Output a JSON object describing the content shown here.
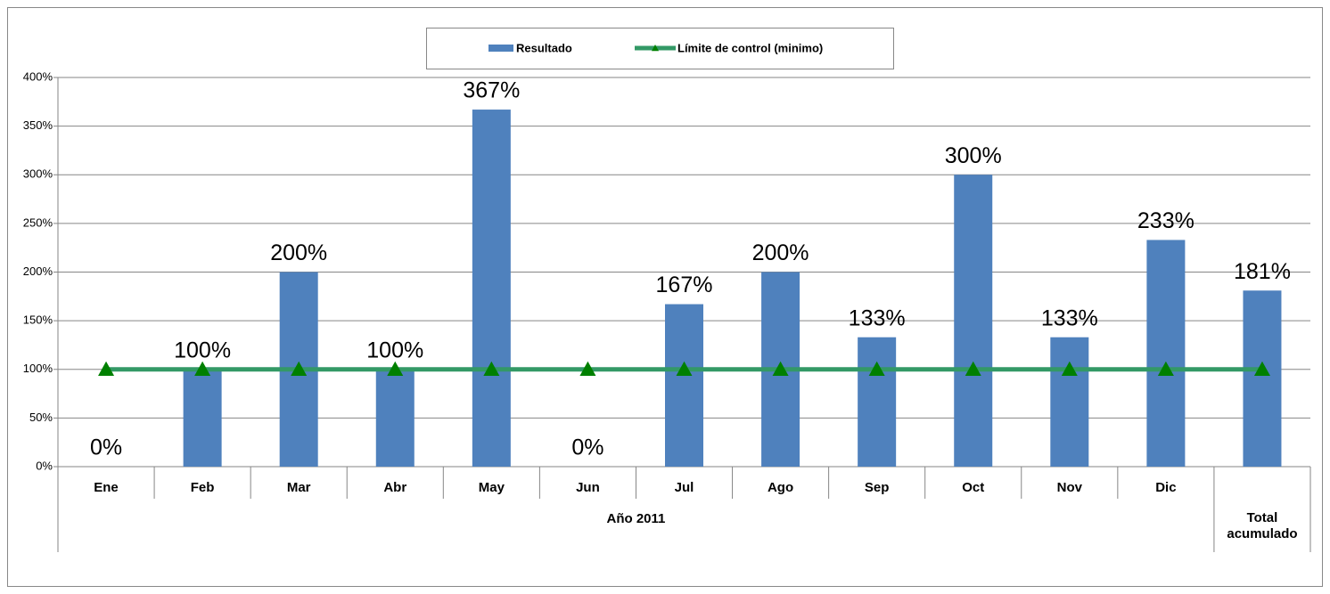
{
  "chart_data": {
    "type": "bar",
    "categories": [
      "Ene",
      "Feb",
      "Mar",
      "Abr",
      "May",
      "Jun",
      "Jul",
      "Ago",
      "Sep",
      "Oct",
      "Nov",
      "Dic",
      "Total acumulado"
    ],
    "category_group": "Año 2011",
    "series": [
      {
        "name": "Resultado",
        "color": "#4f81bd",
        "values": [
          0,
          100,
          200,
          100,
          367,
          0,
          167,
          200,
          133,
          300,
          133,
          233,
          181
        ],
        "value_labels": [
          "0%",
          "100%",
          "200%",
          "100%",
          "367%",
          "0%",
          "167%",
          "200%",
          "133%",
          "300%",
          "133%",
          "233%",
          "181%"
        ]
      },
      {
        "name": "Límite de control (minimo)",
        "type": "line",
        "color": "#339966",
        "marker_color": "#008000",
        "values": [
          100,
          100,
          100,
          100,
          100,
          100,
          100,
          100,
          100,
          100,
          100,
          100,
          100
        ]
      }
    ],
    "ylim": [
      0,
      400
    ],
    "yticks": [
      {
        "value": 0,
        "label": "0%"
      },
      {
        "value": 50,
        "label": "50%"
      },
      {
        "value": 100,
        "label": "100%"
      },
      {
        "value": 150,
        "label": "150%"
      },
      {
        "value": 200,
        "label": "200%"
      },
      {
        "value": 250,
        "label": "250%"
      },
      {
        "value": 300,
        "label": "300%"
      },
      {
        "value": 350,
        "label": "350%"
      },
      {
        "value": 400,
        "label": "400%"
      }
    ],
    "grid": true,
    "legend": "top"
  }
}
